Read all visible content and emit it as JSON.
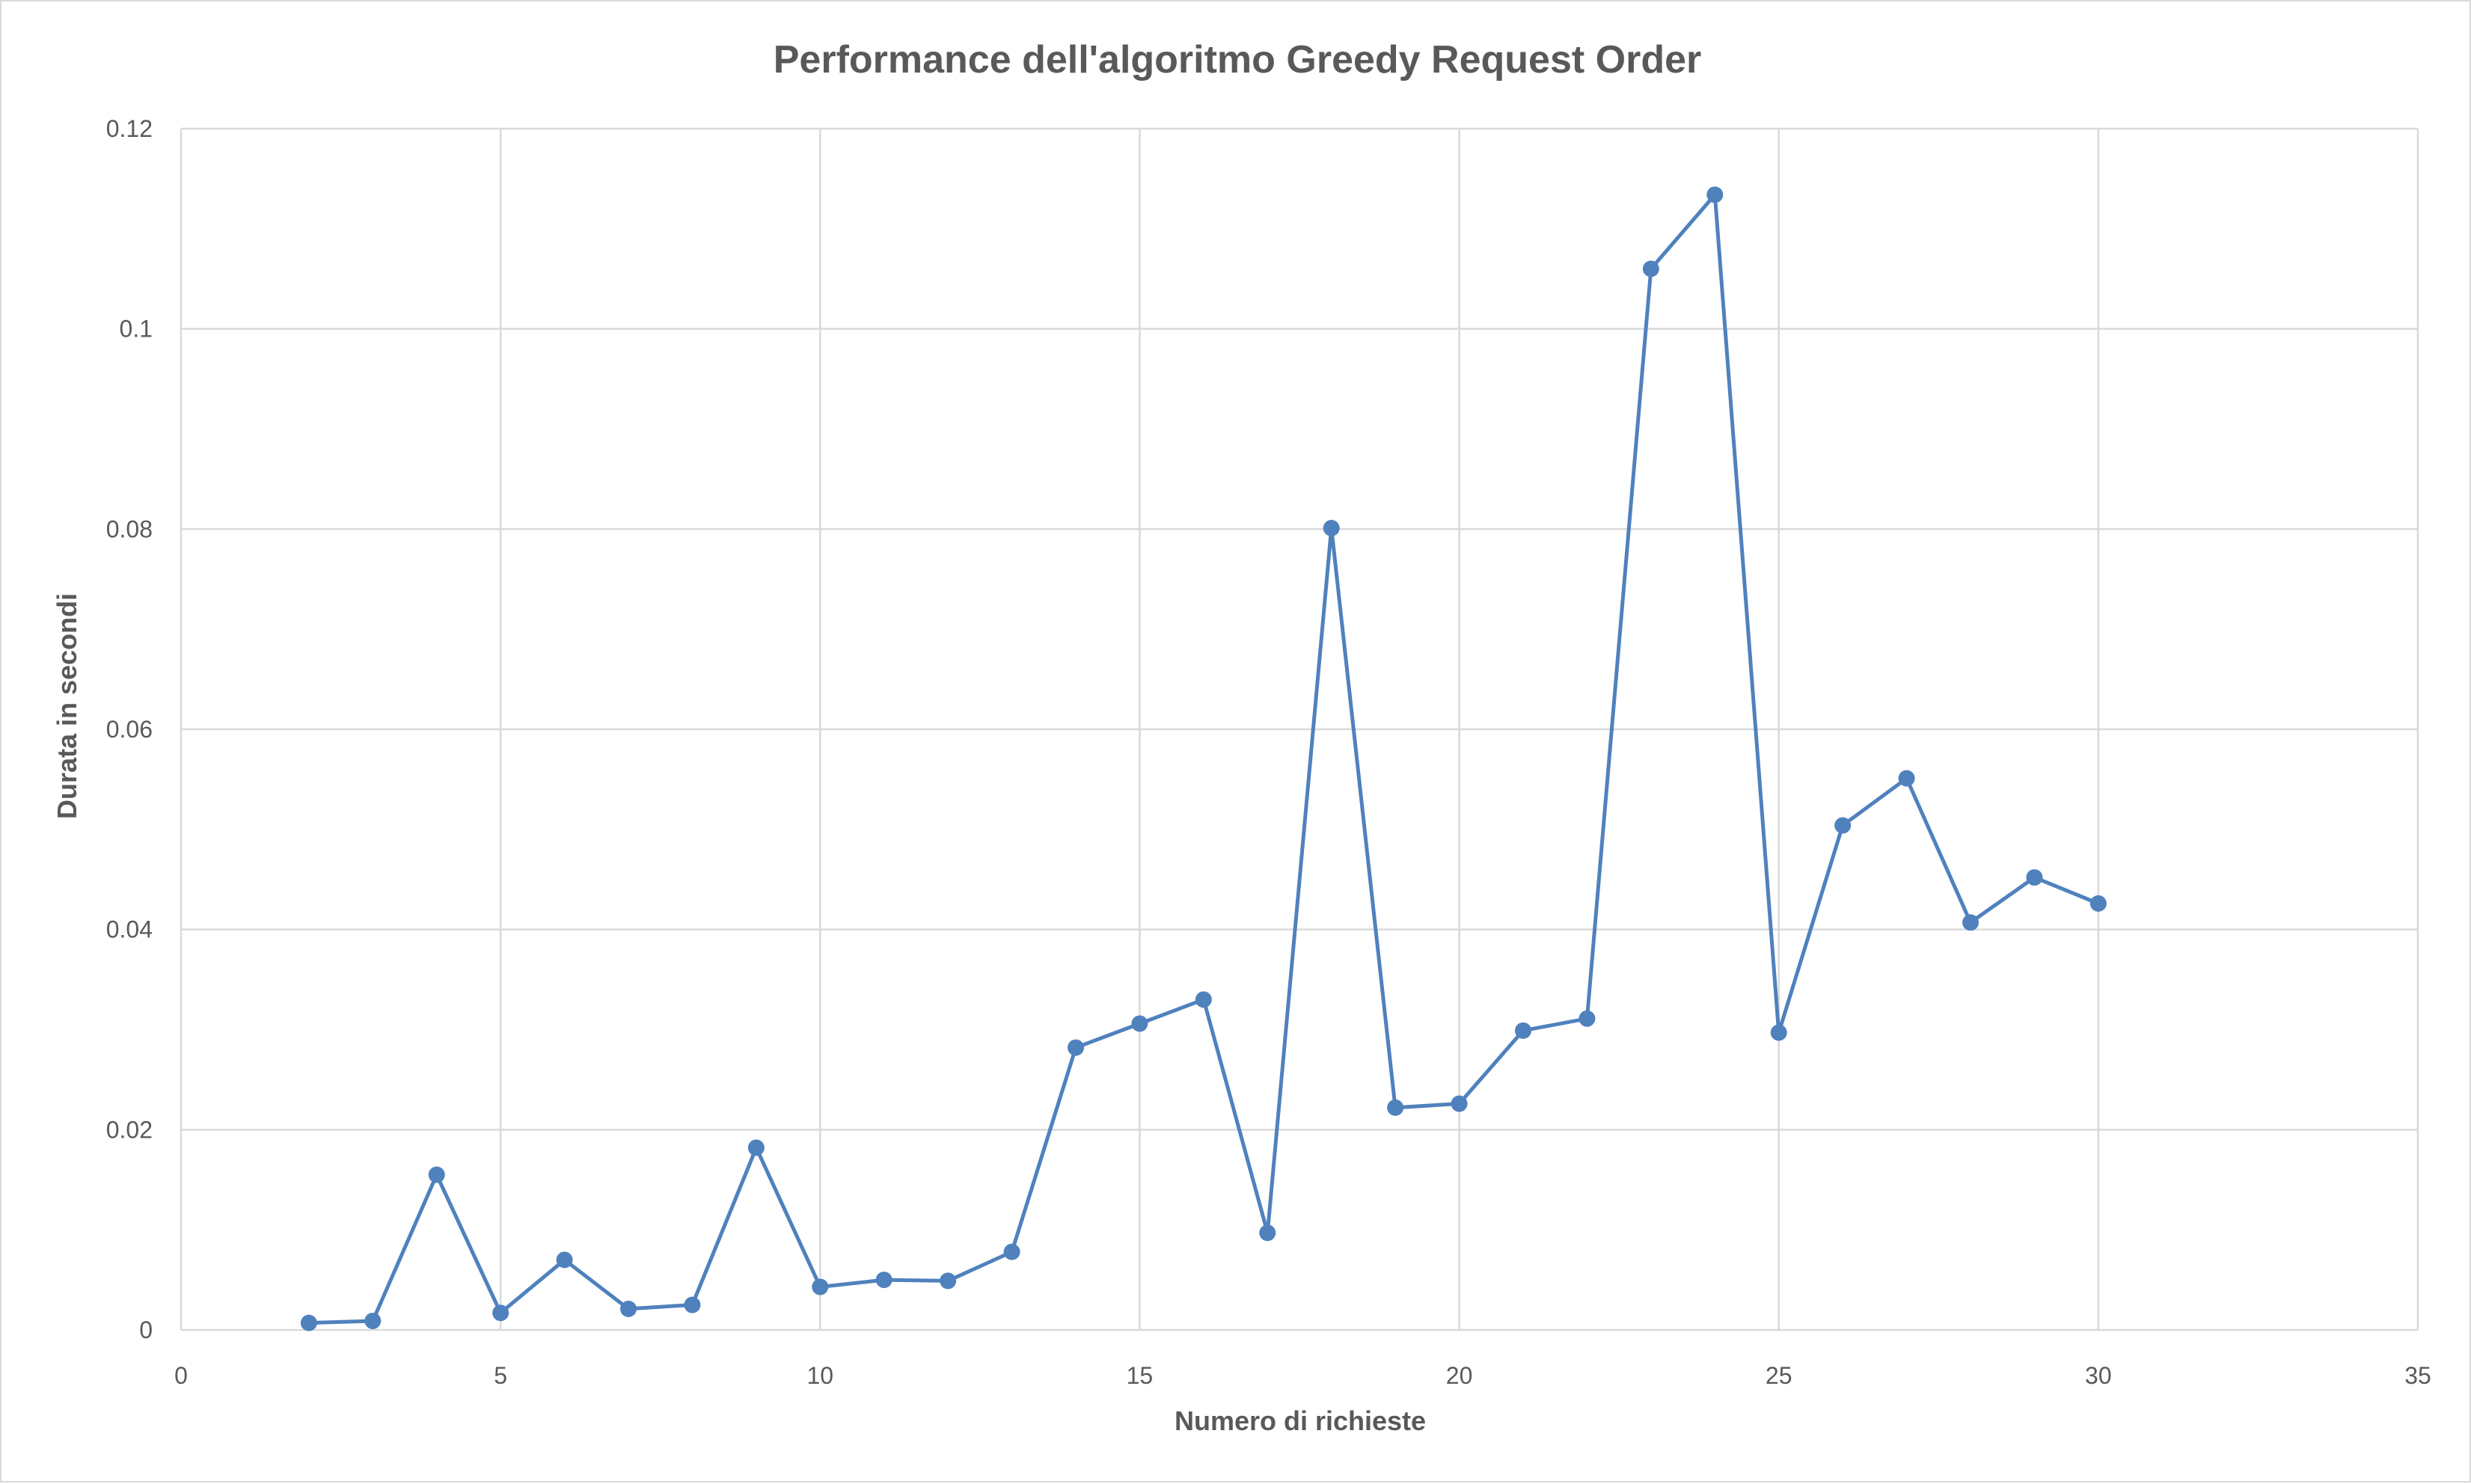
{
  "chart_data": {
    "type": "scatter",
    "title": "Performance dell'algoritmo Greedy Request Order",
    "xlabel": "Numero di richieste",
    "ylabel": "Durata in secondi",
    "xlim": [
      0,
      35
    ],
    "ylim": [
      0,
      0.12
    ],
    "x_ticks": [
      0,
      5,
      10,
      15,
      20,
      25,
      30,
      35
    ],
    "y_ticks": [
      0,
      0.02,
      0.04,
      0.06,
      0.08,
      0.1,
      0.12
    ],
    "x_tick_labels": [
      "0",
      "5",
      "10",
      "15",
      "20",
      "25",
      "30",
      "35"
    ],
    "y_tick_labels": [
      "0",
      "0.02",
      "0.04",
      "0.06",
      "0.08",
      "0.1",
      "0.12"
    ],
    "grid": true,
    "lines_and_markers": true,
    "series": [
      {
        "color": "#4f81bd",
        "x": [
          2,
          3,
          4,
          5,
          6,
          7,
          8,
          9,
          10,
          11,
          12,
          13,
          14,
          15,
          16,
          17,
          18,
          19,
          20,
          21,
          22,
          23,
          24,
          25,
          26,
          27,
          28,
          29,
          30
        ],
        "y": [
          0.0007,
          0.0009,
          0.0155,
          0.0017,
          0.007,
          0.0021,
          0.0025,
          0.0182,
          0.0043,
          0.005,
          0.0049,
          0.0078,
          0.0282,
          0.0306,
          0.033,
          0.0097,
          0.0801,
          0.0222,
          0.0226,
          0.0299,
          0.0311,
          0.106,
          0.1134,
          0.0297,
          0.0504,
          0.0551,
          0.0407,
          0.0452,
          0.0426
        ]
      }
    ]
  }
}
